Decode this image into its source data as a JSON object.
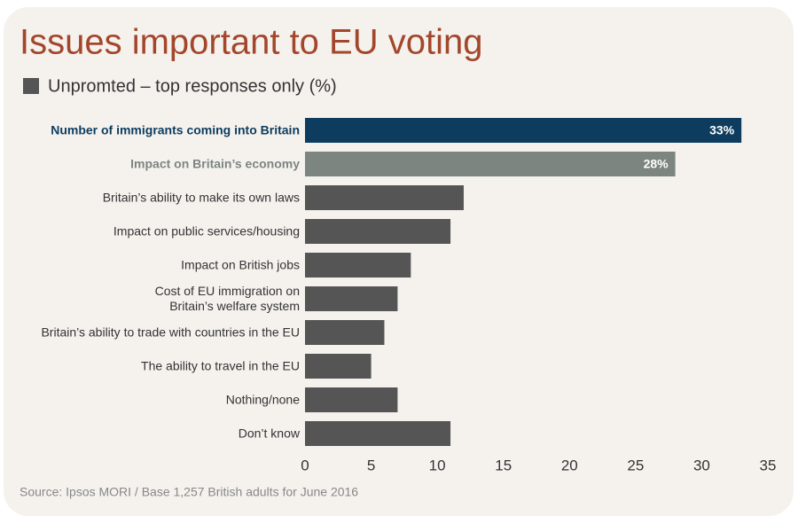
{
  "chart_data": {
    "type": "barh",
    "title": "Issues important to EU voting",
    "source": "Source: Ipsos MORI / Base 1,257 British adults for June 2016",
    "categories": [
      "Number of immigrants coming into Britain",
      "Impact on Britain’s economy",
      "Britain’s ability to make its own laws",
      "Impact on public services/housing",
      "Impact on British jobs",
      "Cost of EU immigration on\nBritain’s welfare system",
      "Britain’s ability to trade with countries in the EU",
      "The ability to travel in the EU",
      "Nothing/none",
      "Don’t know"
    ],
    "series": [
      {
        "name": "Unpromted – top responses only (%)",
        "color": "#555555",
        "values": [
          33,
          28,
          12,
          11,
          8,
          7,
          6,
          5,
          7,
          11
        ],
        "value_labels": [
          "33%",
          "28%",
          null,
          null,
          null,
          null,
          null,
          null,
          null,
          null
        ]
      }
    ],
    "highlight_colors": [
      "#0d3c5f",
      "#7c8580"
    ],
    "xlim": [
      0,
      35
    ],
    "xticks": [
      0,
      5,
      10,
      15,
      20,
      25,
      30,
      35
    ],
    "grid": false
  }
}
